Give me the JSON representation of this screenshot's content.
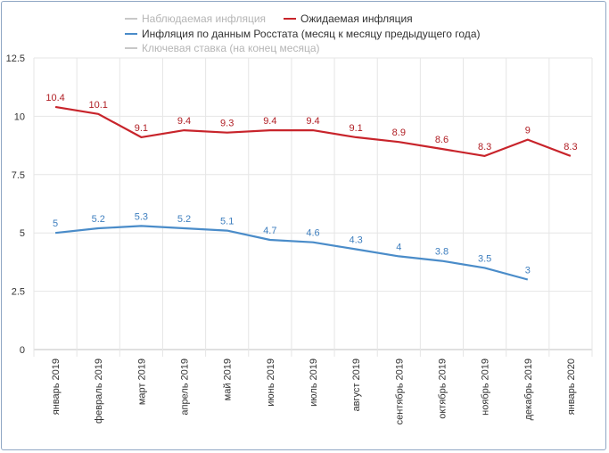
{
  "chart_data": {
    "type": "line",
    "categories": [
      "январь 2019",
      "февраль 2019",
      "март 2019",
      "апрель 2019",
      "май 2019",
      "июнь 2019",
      "июль 2019",
      "август 2019",
      "сентябрь 2019",
      "октябрь 2019",
      "ноябрь 2019",
      "декабрь 2019",
      "январь 2020"
    ],
    "ylim": [
      0,
      12.5
    ],
    "yticks": [
      0,
      2.5,
      5,
      7.5,
      10,
      12.5
    ],
    "ytick_labels": [
      "0",
      "2.5",
      "5",
      "7.5",
      "10",
      "12.5"
    ],
    "legend": [
      {
        "key": "observed",
        "label": "Наблюдаемая инфляция",
        "visible": false,
        "color": "#c8c8c8"
      },
      {
        "key": "expected",
        "label": "Ожидаемая инфляция",
        "visible": true,
        "color": "#c8242b"
      },
      {
        "key": "rosstat",
        "label": "Инфляция по данным Росстата (месяц к месяцу предыдущего года)",
        "visible": true,
        "color": "#4a8cc9"
      },
      {
        "key": "keyrate",
        "label": "Ключевая ставка (на конец месяца)",
        "visible": false,
        "color": "#c8c8c8"
      }
    ],
    "series": [
      {
        "name": "Ожидаемая инфляция",
        "color": "#c8242b",
        "label_color": "#b01e24",
        "values": [
          10.4,
          10.1,
          9.1,
          9.4,
          9.3,
          9.4,
          9.4,
          9.1,
          8.9,
          8.6,
          8.3,
          9,
          8.3
        ],
        "labels": [
          "10.4",
          "10.1",
          "9.1",
          "9.4",
          "9.3",
          "9.4",
          "9.4",
          "9.1",
          "8.9",
          "8.6",
          "8.3",
          "9",
          "8.3"
        ]
      },
      {
        "name": "Инфляция по данным Росстата (месяц к месяцу предыдущего года)",
        "color": "#4a8cc9",
        "label_color": "#3f7fbf",
        "values": [
          5,
          5.2,
          5.3,
          5.2,
          5.1,
          4.7,
          4.6,
          4.3,
          4,
          3.8,
          3.5,
          3,
          null
        ],
        "labels": [
          "5",
          "5.2",
          "5.3",
          "5.2",
          "5.1",
          "4.7",
          "4.6",
          "4.3",
          "4",
          "3.8",
          "3.5",
          "3",
          null
        ]
      }
    ]
  }
}
